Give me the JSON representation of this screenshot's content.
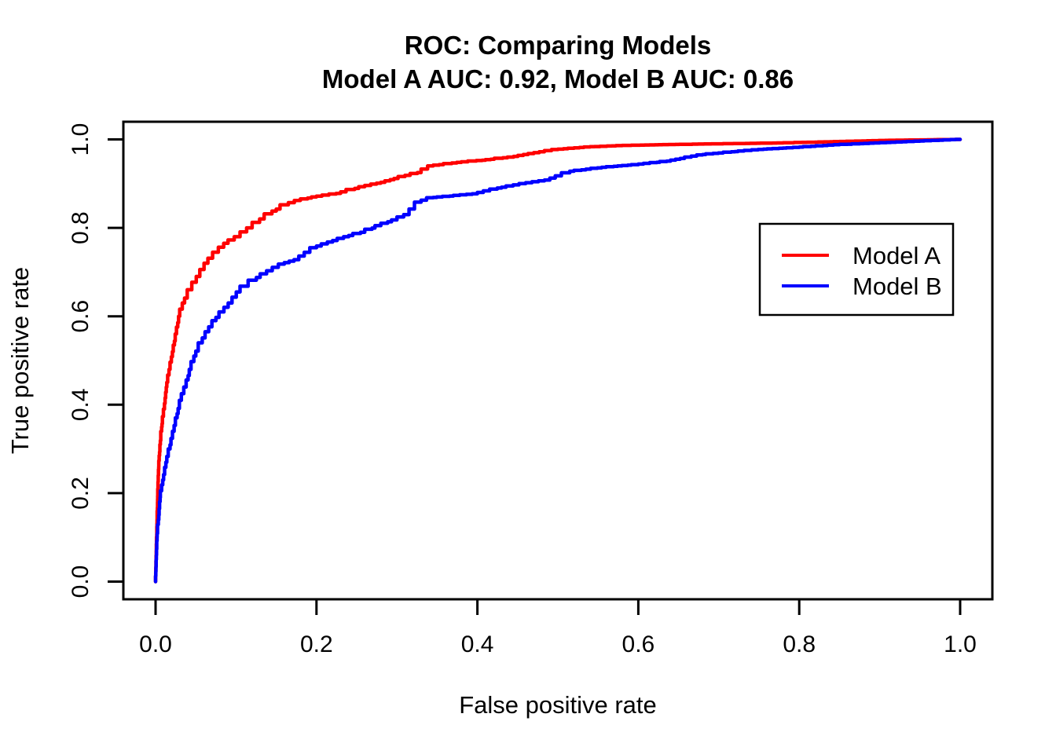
{
  "chart_data": {
    "type": "line",
    "title": "ROC: Comparing Models",
    "subtitle": "Model A AUC: 0.92, Model B AUC: 0.86",
    "xlabel": "False positive rate",
    "ylabel": "True positive rate",
    "xlim": [
      0.0,
      1.0
    ],
    "ylim": [
      0.0,
      1.0
    ],
    "x_ticks": [
      "0.0",
      "0.2",
      "0.4",
      "0.6",
      "0.8",
      "1.0"
    ],
    "y_ticks": [
      "0.0",
      "0.2",
      "0.4",
      "0.6",
      "0.8",
      "1.0"
    ],
    "grid": false,
    "background": "#ffffff",
    "axis_color": "#000000",
    "legend_position": "right-middle",
    "series": [
      {
        "name": "Model A",
        "auc": "0.92",
        "color": "#ff0000",
        "points": [
          [
            0.0,
            0.0
          ],
          [
            0.001,
            0.07
          ],
          [
            0.002,
            0.14
          ],
          [
            0.003,
            0.21
          ],
          [
            0.004,
            0.26
          ],
          [
            0.006,
            0.31
          ],
          [
            0.008,
            0.35
          ],
          [
            0.011,
            0.39
          ],
          [
            0.014,
            0.44
          ],
          [
            0.018,
            0.48
          ],
          [
            0.022,
            0.52
          ],
          [
            0.026,
            0.56
          ],
          [
            0.03,
            0.6
          ],
          [
            0.036,
            0.63
          ],
          [
            0.045,
            0.66
          ],
          [
            0.055,
            0.69
          ],
          [
            0.065,
            0.72
          ],
          [
            0.078,
            0.745
          ],
          [
            0.09,
            0.765
          ],
          [
            0.105,
            0.78
          ],
          [
            0.12,
            0.8
          ],
          [
            0.135,
            0.82
          ],
          [
            0.15,
            0.838
          ],
          [
            0.165,
            0.852
          ],
          [
            0.18,
            0.862
          ],
          [
            0.2,
            0.87
          ],
          [
            0.23,
            0.878
          ],
          [
            0.26,
            0.893
          ],
          [
            0.285,
            0.903
          ],
          [
            0.31,
            0.916
          ],
          [
            0.33,
            0.925
          ],
          [
            0.345,
            0.94
          ],
          [
            0.38,
            0.948
          ],
          [
            0.41,
            0.953
          ],
          [
            0.445,
            0.96
          ],
          [
            0.47,
            0.968
          ],
          [
            0.5,
            0.977
          ],
          [
            0.54,
            0.983
          ],
          [
            0.58,
            0.986
          ],
          [
            0.63,
            0.988
          ],
          [
            0.7,
            0.99
          ],
          [
            0.78,
            0.992
          ],
          [
            0.85,
            0.995
          ],
          [
            0.92,
            0.998
          ],
          [
            1.0,
            1.0
          ]
        ]
      },
      {
        "name": "Model B",
        "auc": "0.86",
        "color": "#0000ff",
        "points": [
          [
            0.0,
            0.0
          ],
          [
            0.001,
            0.05
          ],
          [
            0.002,
            0.1
          ],
          [
            0.004,
            0.14
          ],
          [
            0.006,
            0.19
          ],
          [
            0.01,
            0.23
          ],
          [
            0.014,
            0.27
          ],
          [
            0.018,
            0.3
          ],
          [
            0.023,
            0.34
          ],
          [
            0.028,
            0.38
          ],
          [
            0.032,
            0.41
          ],
          [
            0.038,
            0.44
          ],
          [
            0.044,
            0.48
          ],
          [
            0.05,
            0.51
          ],
          [
            0.058,
            0.54
          ],
          [
            0.066,
            0.565
          ],
          [
            0.075,
            0.59
          ],
          [
            0.085,
            0.61
          ],
          [
            0.095,
            0.63
          ],
          [
            0.105,
            0.655
          ],
          [
            0.115,
            0.668
          ],
          [
            0.13,
            0.688
          ],
          [
            0.145,
            0.703
          ],
          [
            0.16,
            0.718
          ],
          [
            0.178,
            0.728
          ],
          [
            0.2,
            0.755
          ],
          [
            0.22,
            0.768
          ],
          [
            0.24,
            0.78
          ],
          [
            0.26,
            0.79
          ],
          [
            0.28,
            0.805
          ],
          [
            0.3,
            0.818
          ],
          [
            0.315,
            0.83
          ],
          [
            0.33,
            0.858
          ],
          [
            0.345,
            0.868
          ],
          [
            0.37,
            0.872
          ],
          [
            0.4,
            0.877
          ],
          [
            0.43,
            0.89
          ],
          [
            0.46,
            0.9
          ],
          [
            0.49,
            0.908
          ],
          [
            0.52,
            0.928
          ],
          [
            0.56,
            0.937
          ],
          [
            0.6,
            0.943
          ],
          [
            0.64,
            0.951
          ],
          [
            0.68,
            0.965
          ],
          [
            0.72,
            0.972
          ],
          [
            0.76,
            0.978
          ],
          [
            0.8,
            0.982
          ],
          [
            0.85,
            0.988
          ],
          [
            0.9,
            0.992
          ],
          [
            0.95,
            0.996
          ],
          [
            1.0,
            1.0
          ]
        ]
      }
    ]
  },
  "plot_geometry_note": "R base-graphics style ROC plot, two stepped curves, no grid"
}
